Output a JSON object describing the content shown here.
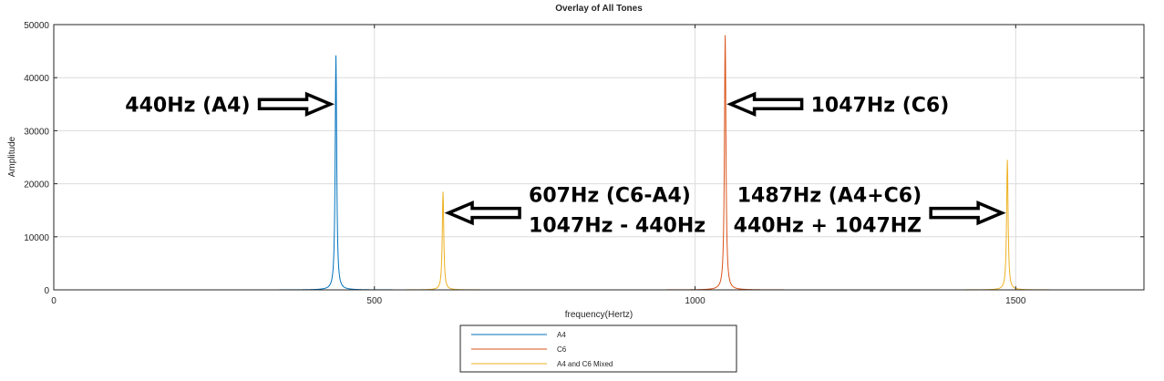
{
  "chart_data": {
    "type": "line",
    "title": "Overlay of All Tones",
    "xlabel": "frequency(Hertz)",
    "ylabel": "Amplitude",
    "xlim": [
      0,
      1700
    ],
    "ylim": [
      0,
      50000
    ],
    "xticks": [
      0,
      500,
      1000,
      1500
    ],
    "yticks": [
      0,
      10000,
      20000,
      30000,
      40000,
      50000
    ],
    "grid": true,
    "legend_position": "bottom-center",
    "series": [
      {
        "name": "A4",
        "color": "#0072BD",
        "peaks": [
          {
            "x": 440,
            "y": 44200
          }
        ]
      },
      {
        "name": "C6",
        "color": "#D95319",
        "peaks": [
          {
            "x": 1047,
            "y": 48000
          }
        ]
      },
      {
        "name": "A4 and C6 Mixed",
        "color": "#EDB120",
        "peaks": [
          {
            "x": 607,
            "y": 18500
          },
          {
            "x": 1487,
            "y": 24500
          }
        ]
      }
    ],
    "annotations": [
      {
        "lines": [
          "440Hz (A4)"
        ],
        "target_x": 440,
        "target_y": 35000,
        "arrow": "right"
      },
      {
        "lines": [
          "1047Hz (C6)"
        ],
        "target_x": 1047,
        "target_y": 35000,
        "arrow": "left"
      },
      {
        "lines": [
          "607Hz (C6-A4)",
          "1047Hz - 440Hz"
        ],
        "target_x": 607,
        "target_y": 14500,
        "arrow": "left"
      },
      {
        "lines": [
          "1487Hz (A4+C6)",
          "440Hz + 1047HZ"
        ],
        "target_x": 1487,
        "target_y": 14500,
        "arrow": "right"
      }
    ]
  }
}
